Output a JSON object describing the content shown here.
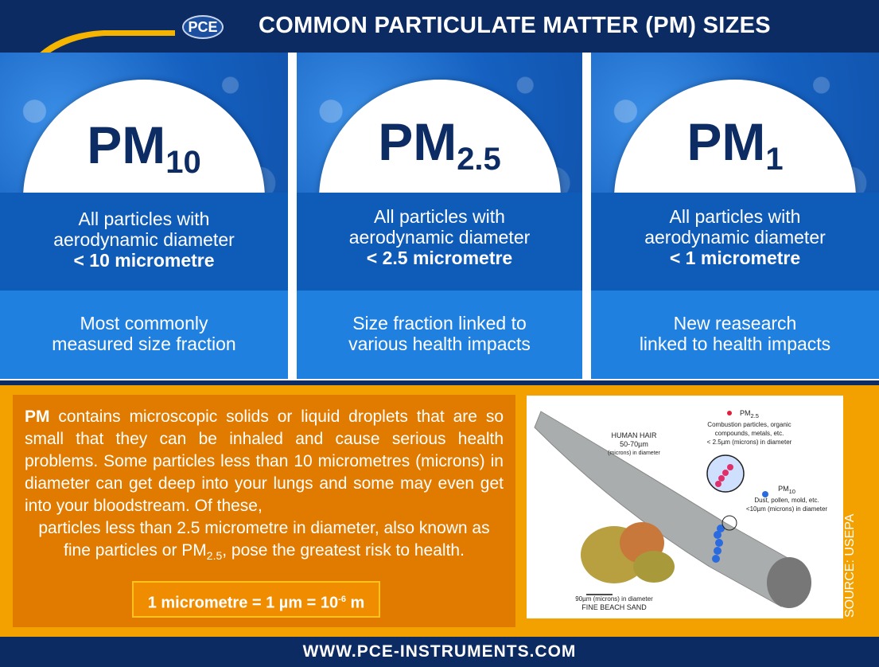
{
  "header": {
    "logo": "PCE",
    "title": "COMMON PARTICULATE MATTER (PM) SIZES"
  },
  "columns": [
    {
      "pm": "PM",
      "sub": "10",
      "line1": "All particles with",
      "line2": "aerodynamic diameter",
      "line3": "< 10 micrometre",
      "note1": "Most commonly",
      "note2": "measured size fraction"
    },
    {
      "pm": "PM",
      "sub": "2.5",
      "line1": "All particles with",
      "line2": "aerodynamic diameter",
      "line3": "< 2.5 micrometre",
      "note1": "Size fraction linked to",
      "note2": "various health impacts"
    },
    {
      "pm": "PM",
      "sub": "1",
      "line1": "All particles with",
      "line2": "aerodynamic diameter",
      "line3": "< 1 micrometre",
      "note1": "New reasearch",
      "note2": "linked to health impacts"
    }
  ],
  "info": {
    "bold": "PM",
    "body": " contains microscopic solids or liquid droplets that are so small that they can be inhaled and cause serious health problems. Some particles less than 10 micrometres (microns) in diameter can get deep into your lungs and some may even get into your bloodstream. Of these,",
    "last_pre": "particles less than 2.5 micrometre in diameter, also known as fine particles or PM",
    "last_sub": "2.5",
    "last_post": ", pose the greatest risk to health.",
    "formula": "1 micrometre = 1 µm = 10",
    "formula_exp": "-6",
    "formula_unit": " m"
  },
  "illustration": {
    "hair_title": "HUMAN HAIR",
    "hair_size": "50-70µm",
    "hair_note": "(microns) in diameter",
    "pm25_label": "PM",
    "pm25_sub": "2.5",
    "pm25_desc1": "Combustion particles, organic",
    "pm25_desc2": "compounds, metals, etc.",
    "pm25_size": "< 2.5µm (microns) in diameter",
    "pm10_label": "PM",
    "pm10_sub": "10",
    "pm10_desc": "Dust, pollen, mold, etc.",
    "pm10_size": "<10µm (microns) in diameter",
    "sand_size": "90µm (microns) in diameter",
    "sand_title": "FINE BEACH SAND"
  },
  "source": "SOURCE: USEPA",
  "footer": "WWW.PCE-INSTRUMENTS.COM"
}
